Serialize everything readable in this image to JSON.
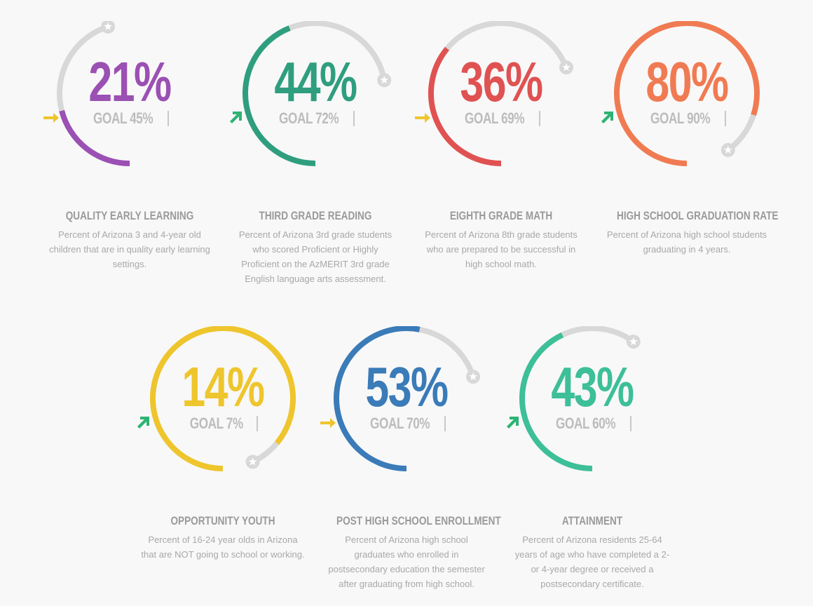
{
  "colors": {
    "track": "#d8d8d8",
    "goal_text": "#bcbcbc",
    "title": "#9a9a9a",
    "desc": "#a8a8a8",
    "arrow_flat": "#eec52c",
    "arrow_up": "#2eb374"
  },
  "metrics": [
    {
      "value": "21%",
      "fill": 0.21,
      "goal_pos": 0.45,
      "goal": "GOAL 45%",
      "trend": "arrow-right",
      "color": "#9b50b3",
      "title": "QUALITY EARLY LEARNING",
      "desc": "Percent of Arizona 3 and 4-year old children that are in quality early learning settings."
    },
    {
      "value": "44%",
      "fill": 0.44,
      "goal_pos": 0.72,
      "goal": "GOAL 72%",
      "trend": "arrow-up-right",
      "color": "#2f9e7f",
      "title": "THIRD GRADE READING",
      "desc": "Percent of Arizona 3rd grade students who scored Proficient or Highly Proficient on the AzMERIT 3rd grade English language arts assessment."
    },
    {
      "value": "36%",
      "fill": 0.36,
      "goal_pos": 0.69,
      "goal": "GOAL 69%",
      "trend": "arrow-right",
      "color": "#e05252",
      "title": "EIGHTH GRADE MATH",
      "desc": "Percent of Arizona 8th grade students who are prepared to be successful in high school math."
    },
    {
      "value": "80%",
      "fill": 0.8,
      "goal_pos": 0.9,
      "goal": "GOAL 90%",
      "trend": "arrow-up-right",
      "color": "#f07b52",
      "title": "HIGH SCHOOL GRADUATION RATE",
      "desc": "Percent of Arizona high school students graduating in 4 years."
    },
    {
      "value": "14%",
      "fill": 0.86,
      "goal_pos": 0.93,
      "goal": "GOAL 7%",
      "trend": "arrow-up-right",
      "color": "#eec52c",
      "title": "OPPORTUNITY YOUTH",
      "desc": "Percent of 16-24 year olds in Arizona that are NOT going to school or working."
    },
    {
      "value": "53%",
      "fill": 0.53,
      "goal_pos": 0.7,
      "goal": "GOAL 70%",
      "trend": "arrow-right",
      "color": "#3a7bb8",
      "title": "POST HIGH SCHOOL ENROLLMENT",
      "desc": "Percent of Arizona high school graduates who enrolled in postsecondary education the semester after graduating from high school."
    },
    {
      "value": "43%",
      "fill": 0.43,
      "goal_pos": 0.6,
      "goal": "GOAL 60%",
      "trend": "arrow-up-right",
      "color": "#3dbf98",
      "title": "ATTAINMENT",
      "desc": "Percent of Arizona residents 25-64 years of age who have completed a 2- or 4-year degree or received a postsecondary certificate."
    }
  ]
}
